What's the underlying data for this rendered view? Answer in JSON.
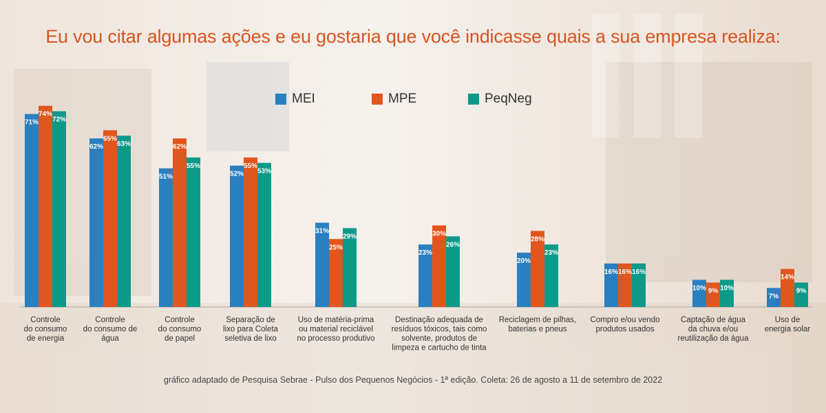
{
  "title": "Eu vou citar algumas ações e eu gostaria que você indicasse quais a sua empresa realiza:",
  "source": "gráfico adaptado de  Pesquisa Sebrae - Pulso dos Pequenos Negócios - 1ª edição. Coleta: 26 de agosto a 11 de setembro de 2022",
  "colors": {
    "title": "#d9541f",
    "background": "#f3eee9"
  },
  "chart_data": {
    "type": "bar",
    "categories": [
      [
        "Controle",
        "do consumo",
        "de energia"
      ],
      [
        "Controle",
        "do consumo de",
        "água"
      ],
      [
        "Controle",
        "do consumo",
        "de papel"
      ],
      [
        "Separação de",
        "lixo para Coleta",
        "seletiva de lixo"
      ],
      [
        "Uso de matéria-prima",
        "ou material reciclável",
        "no processo produtivo"
      ],
      [
        "Destinação adequada de",
        "resíduos tóxicos, tais como",
        "solvente, produtos de",
        "limpeza e cartucho de tinta"
      ],
      [
        "Reciclagem de pilhas,",
        "baterias e pneus"
      ],
      [
        "Compro e/ou vendo",
        "produtos usados"
      ],
      [
        "Captação de água",
        "da chuva e/ou",
        "reutilização da água"
      ],
      [
        "Uso de",
        "energia solar"
      ]
    ],
    "series": [
      {
        "name": "MEI",
        "color": "#2a7fc0",
        "values": [
          71,
          62,
          51,
          52,
          31,
          23,
          20,
          16,
          10,
          7
        ],
        "labels": [
          "71%",
          "62%",
          "51%",
          "52%",
          "31%",
          "23%",
          "20%",
          "16%",
          "10%",
          "7%"
        ]
      },
      {
        "name": "MPE",
        "color": "#e0561e",
        "values": [
          74,
          65,
          62,
          55,
          25,
          30,
          28,
          16,
          9,
          14
        ],
        "labels": [
          "74%",
          "65%",
          "62%",
          "55%",
          "25%",
          "30%",
          "28%",
          "16%",
          "9%",
          "14%"
        ]
      },
      {
        "name": "PeqNeg",
        "color": "#0c9a88",
        "values": [
          72,
          63,
          55,
          53,
          29,
          26,
          23,
          16,
          10,
          9
        ],
        "labels": [
          "72%",
          "63%",
          "55%",
          "53%",
          "29%",
          "26%",
          "23%",
          "16%",
          "10%",
          "9%"
        ]
      }
    ],
    "ylim": [
      0,
      80
    ],
    "legend": "top-center",
    "data_labels": "inside-top"
  }
}
